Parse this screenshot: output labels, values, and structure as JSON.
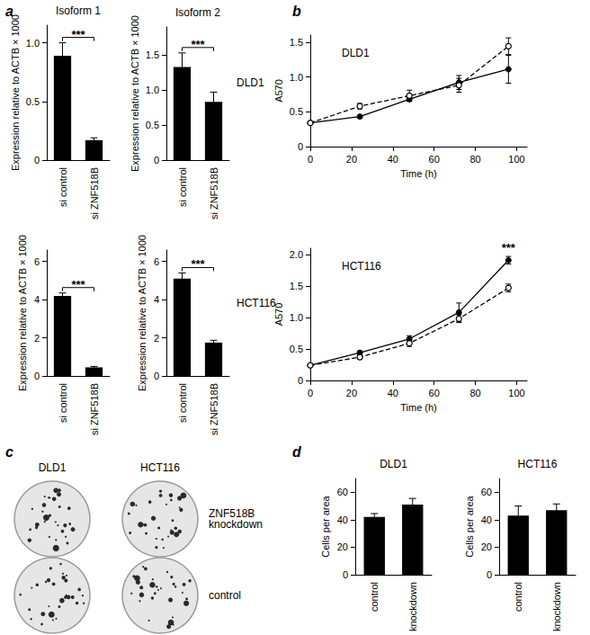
{
  "chart_data": [
    {
      "type": "bar",
      "title": "Isoform 1",
      "categories": [
        "si control",
        "si ZNF518B"
      ],
      "values": [
        0.89,
        0.17
      ],
      "errors": [
        0.11,
        0.02
      ],
      "color": "#000000",
      "y_label": "Expression relative to ACTB × 1000",
      "ylim": [
        0,
        1.15
      ],
      "yticks": [
        0,
        0.5,
        {
          "value": 1,
          "label": "1.0"
        }
      ],
      "grid": false,
      "annotations": [
        {
          "text": "***",
          "from": "si control",
          "to": "si ZNF518B"
        }
      ]
    },
    {
      "type": "bar",
      "title": "Isoform 2",
      "subtitle": "DLD1",
      "categories": [
        "si control",
        "si ZNF518B"
      ],
      "values": [
        1.33,
        0.83
      ],
      "errors": [
        0.2,
        0.14
      ],
      "color": "#000000",
      "y_label": "Expression relative to ACTB × 1000",
      "ylim": [
        0,
        1.9
      ],
      "yticks": [
        0,
        0.5,
        {
          "value": 1,
          "label": "1.0"
        },
        1.5
      ],
      "grid": false,
      "annotations": [
        {
          "text": "***",
          "from": "si control",
          "to": "si ZNF518B"
        }
      ]
    },
    {
      "type": "bar",
      "categories": [
        "si control",
        "si ZNF518B"
      ],
      "values": [
        4.2,
        0.45
      ],
      "errors": [
        0.15,
        0.05
      ],
      "color": "#000000",
      "y_label": "Expression relative to ACTB × 1000",
      "ylim": [
        0,
        6.6
      ],
      "yticks": [
        0,
        2,
        4,
        6
      ],
      "grid": false,
      "annotations": [
        {
          "text": "***",
          "from": "si control",
          "to": "si ZNF518B"
        }
      ]
    },
    {
      "type": "bar",
      "subtitle": "HCT116",
      "categories": [
        "si control",
        "si ZNF518B"
      ],
      "values": [
        5.1,
        1.75
      ],
      "errors": [
        0.3,
        0.12
      ],
      "color": "#000000",
      "y_label": "Expression relative to ACTB × 1000",
      "ylim": [
        0,
        6.6
      ],
      "yticks": [
        0,
        2,
        4,
        6
      ],
      "grid": false,
      "annotations": [
        {
          "text": "***",
          "from": "si control",
          "to": "si ZNF518B"
        }
      ]
    },
    {
      "type": "line",
      "subtitle": "DLD1",
      "x": [
        0,
        24,
        48,
        72,
        96
      ],
      "series": [
        {
          "color": "#000000",
          "marker": "filled circle",
          "line_style": "solid",
          "values": [
            0.34,
            0.43,
            0.68,
            0.92,
            1.11
          ],
          "errors": [
            0.01,
            0.02,
            0.03,
            0.1,
            0.2
          ]
        },
        {
          "color": "#000000",
          "marker": "open circle",
          "line_style": "dashed",
          "values": [
            0.34,
            0.58,
            0.73,
            0.88,
            1.44
          ],
          "errors": [
            0.01,
            0.04,
            0.08,
            0.1,
            0.12
          ]
        }
      ],
      "x_label": "Time (h)",
      "y_label": "A570",
      "xlim": [
        0,
        105
      ],
      "xticks": [
        0,
        20,
        40,
        60,
        80,
        100
      ],
      "ylim": [
        0,
        1.6
      ],
      "yticks": [
        0,
        0.5,
        {
          "value": 1,
          "label": "1.0"
        },
        1.5
      ],
      "grid": false
    },
    {
      "type": "line",
      "subtitle": "HCT116",
      "x": [
        0,
        24,
        48,
        72,
        96
      ],
      "series": [
        {
          "color": "#000000",
          "marker": "filled circle",
          "line_style": "solid",
          "values": [
            0.24,
            0.44,
            0.66,
            1.08,
            1.91
          ],
          "errors": [
            0.02,
            0.03,
            0.05,
            0.15,
            0.06
          ]
        },
        {
          "color": "#000000",
          "marker": "open circle",
          "line_style": "dashed",
          "values": [
            0.24,
            0.37,
            0.59,
            0.98,
            1.47
          ],
          "errors": [
            0.02,
            0.03,
            0.05,
            0.06,
            0.06
          ]
        }
      ],
      "x_label": "Time (h)",
      "y_label": "A570",
      "xlim": [
        0,
        105
      ],
      "xticks": [
        0,
        20,
        40,
        60,
        80,
        100
      ],
      "ylim": [
        0,
        2.1
      ],
      "yticks": [
        0,
        0.5,
        {
          "value": 1,
          "label": "1.0"
        },
        1.5,
        {
          "value": 2,
          "label": "2.0"
        }
      ],
      "grid": false,
      "annotations": [
        {
          "text": "***",
          "x": 96
        }
      ]
    },
    {
      "type": "bar",
      "title": "DLD1",
      "categories": [
        "control",
        "knockdown"
      ],
      "values": [
        42,
        51
      ],
      "errors": [
        2.5,
        4.5
      ],
      "color": "#000000",
      "y_label": "Cells per area",
      "ylim": [
        0,
        70
      ],
      "yticks": [
        0,
        20,
        40,
        60
      ],
      "grid": false
    },
    {
      "type": "bar",
      "title": "HCT116",
      "categories": [
        "control",
        "knockdown"
      ],
      "values": [
        43,
        47
      ],
      "errors": [
        7,
        4.5
      ],
      "color": "#000000",
      "y_label": "Cells per area",
      "ylim": [
        0,
        70
      ],
      "yticks": [
        0,
        20,
        40,
        60
      ],
      "grid": false
    }
  ],
  "panel_labels": [
    "a",
    "b",
    "c",
    "d"
  ],
  "panel_c": {
    "columns": [
      "DLD1",
      "HCT116"
    ],
    "rows": [
      "ZNF518B knockdown",
      "control"
    ]
  }
}
